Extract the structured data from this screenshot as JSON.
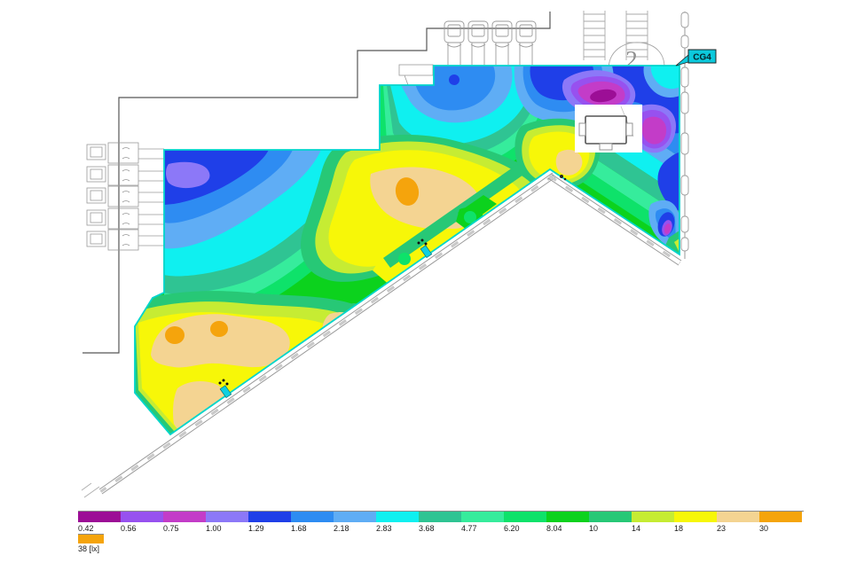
{
  "annotations": {
    "callout": "CG4",
    "callout_color": "#0cc9dc",
    "stair_number": "2"
  },
  "chart_data": {
    "type": "heatmap",
    "subtype": "isolux false-color illuminance contour map over architectural floor plan",
    "units": "lx",
    "legend_position": "bottom",
    "levels": [
      "0.42",
      "0.56",
      "0.75",
      "1.00",
      "1.29",
      "1.68",
      "2.18",
      "2.83",
      "3.68",
      "4.77",
      "6.20",
      "8.04",
      "10",
      "14",
      "18",
      "23",
      "30"
    ],
    "level_colors": [
      "#9C0E96",
      "#9751EF",
      "#C33CC8",
      "#8C78F8",
      "#1F3FE8",
      "#2E8CF2",
      "#5FADF5",
      "#0FF0F0",
      "#2FC493",
      "#36EC9C",
      "#0EE26A",
      "#0CD21D",
      "#27C876",
      "#C6EC33",
      "#F7F708",
      "#F4D492",
      "#F5A40C"
    ],
    "max_level": {
      "label": "38 [lx]",
      "color": "#F5A40C"
    },
    "features": {
      "low_zones_lx": "0.42–1.0 (magenta/violet cores) along upper-right wall",
      "high_zones_lx": "30–38 (orange spots) centre and lower-left of hall",
      "boundary_color": "#00D5CB"
    }
  }
}
